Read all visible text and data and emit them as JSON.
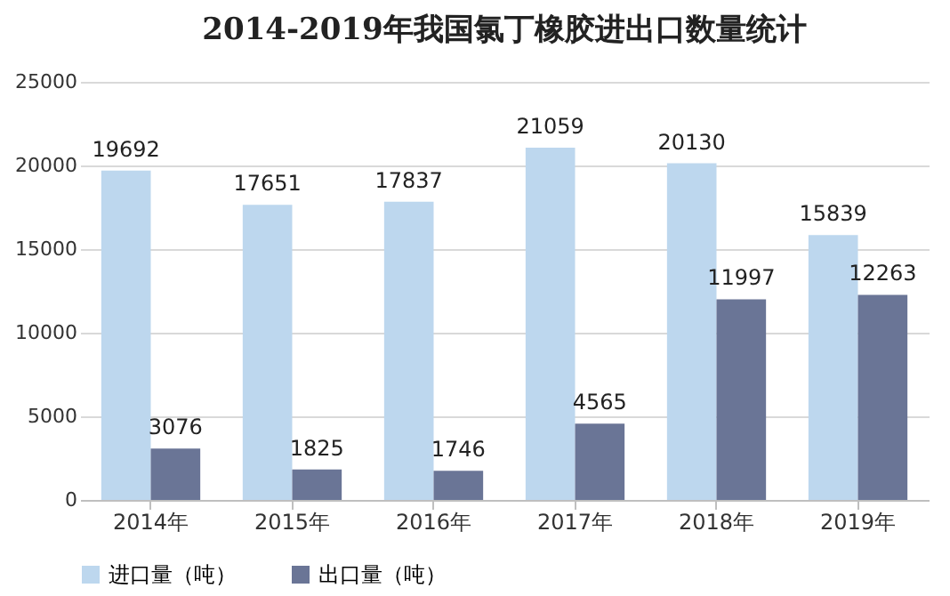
{
  "chart_data": {
    "type": "bar",
    "title": "2014-2019年我国氯丁橡胶进出口数量统计",
    "categories": [
      "2014年",
      "2015年",
      "2016年",
      "2017年",
      "2018年",
      "2019年"
    ],
    "series": [
      {
        "name": "进口量（吨）",
        "color": "#bdd7ee",
        "values": [
          19692,
          17651,
          17837,
          21059,
          20130,
          15839
        ]
      },
      {
        "name": "出口量（吨）",
        "color": "#6a7596",
        "values": [
          3076,
          1825,
          1746,
          4565,
          11997,
          12263
        ]
      }
    ],
    "ylim": [
      0,
      25000
    ],
    "yticks": [
      0,
      5000,
      10000,
      15000,
      20000,
      25000
    ],
    "grid": "y",
    "legend": "bottom",
    "data_labels": true
  }
}
